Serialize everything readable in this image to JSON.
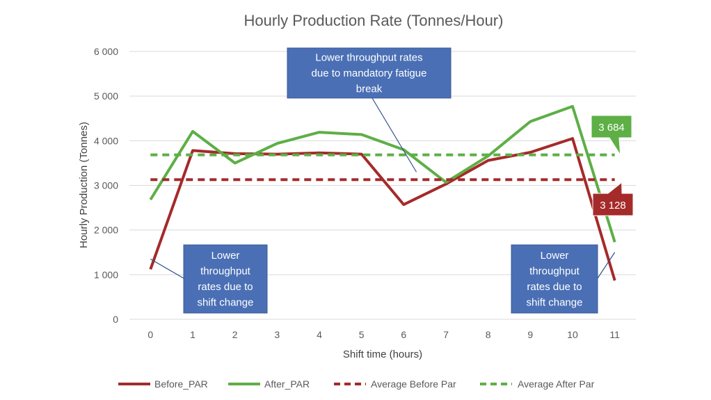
{
  "chart_data": {
    "type": "line",
    "title": "Hourly Production Rate (Tonnes/Hour)",
    "xlabel": "Shift time (hours)",
    "ylabel": "Hourly Production (Tonnes)",
    "ylim": [
      0,
      6000
    ],
    "y_ticks": [
      0,
      1000,
      2000,
      3000,
      4000,
      5000,
      6000
    ],
    "y_tick_labels": [
      "0",
      "1 000",
      "2 000",
      "3 000",
      "4 000",
      "5 000",
      "6 000"
    ],
    "categories": [
      "0",
      "1",
      "2",
      "3",
      "4",
      "5",
      "6",
      "7",
      "8",
      "9",
      "10",
      "11"
    ],
    "grid": true,
    "legend_position": "bottom",
    "series": [
      {
        "name": "Before_PAR",
        "color": "#a52a2a",
        "style": "solid",
        "values": [
          1120,
          3780,
          3710,
          3700,
          3730,
          3700,
          2570,
          3030,
          3560,
          3740,
          4050,
          870
        ]
      },
      {
        "name": "After_PAR",
        "color": "#5daf46",
        "style": "solid",
        "values": [
          2680,
          4210,
          3500,
          3940,
          4190,
          4140,
          3800,
          3070,
          3660,
          4430,
          4770,
          1730
        ]
      },
      {
        "name": "Average Before Par",
        "color": "#a52a2a",
        "style": "dashed",
        "values": [
          3128,
          3128,
          3128,
          3128,
          3128,
          3128,
          3128,
          3128,
          3128,
          3128,
          3128,
          3128
        ]
      },
      {
        "name": "Average After Par",
        "color": "#5daf46",
        "style": "dashed",
        "values": [
          3684,
          3684,
          3684,
          3684,
          3684,
          3684,
          3684,
          3684,
          3684,
          3684,
          3684,
          3684
        ]
      }
    ],
    "data_labels": [
      {
        "series": "Average After Par",
        "text": "3 684",
        "color": "#5daf46"
      },
      {
        "series": "Average Before Par",
        "text": "3 128",
        "color": "#a52a2a"
      }
    ],
    "annotations": [
      {
        "lines": [
          "Lower throughput rates",
          "due to mandatory fatigue",
          "break"
        ],
        "points_to": {
          "x": 6.3,
          "y": 3300
        }
      },
      {
        "lines": [
          "Lower",
          "throughput",
          "rates due to",
          "shift change"
        ],
        "points_to": {
          "x": 0.0,
          "y": 1350
        }
      },
      {
        "lines": [
          "Lower",
          "throughput",
          "rates due to",
          "shift change"
        ],
        "points_to": {
          "x": 11.0,
          "y": 1500
        }
      }
    ],
    "annotation_color": "#4a6fb5"
  }
}
